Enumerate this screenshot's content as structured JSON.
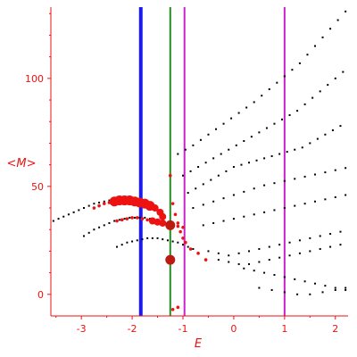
{
  "chart_data": {
    "type": "scatter",
    "title": "",
    "xlabel": "E",
    "ylabel": "<M>",
    "xlim": [
      -3.6,
      2.25
    ],
    "ylim": [
      -10,
      133
    ],
    "grid": false,
    "x_ticks": [
      -3,
      -2,
      -1,
      0,
      1,
      2
    ],
    "y_ticks": [
      0,
      50,
      100
    ],
    "colors": {
      "axis": "#ee1111",
      "black_points": "#000000",
      "red_points": "#ee1111",
      "big_markers": "#bb1a10"
    },
    "vertical_lines": [
      {
        "x": -1.83,
        "color": "#1a1aee"
      },
      {
        "x": -1.25,
        "color": "#228b22"
      },
      {
        "x": -0.97,
        "color": "#cc22cc"
      },
      {
        "x": 1.0,
        "color": "#cc22cc"
      }
    ],
    "big_markers": [
      {
        "x": -1.25,
        "y": 32
      },
      {
        "x": -1.25,
        "y": 16
      }
    ],
    "series": [
      {
        "color": "black",
        "x": [
          -3.55,
          -3.45,
          -3.35,
          -3.25,
          -3.15,
          -3.05,
          -2.95,
          -2.85,
          -2.75,
          -2.65,
          -2.55,
          -2.45,
          -2.35,
          -2.25,
          -2.15,
          -2.95,
          -2.85,
          -2.75,
          -2.65,
          -2.55,
          -2.45,
          -2.35,
          -2.25,
          -2.15,
          -2.05,
          -1.95,
          -1.85,
          -1.75,
          -1.65,
          -2.3,
          -2.2,
          -2.1,
          -2.0,
          -1.9,
          -1.8,
          -1.7,
          -1.6,
          -1.5,
          -1.4,
          -1.3,
          -1.2,
          -1.1,
          -1.0,
          -0.9,
          -0.8,
          -1.1,
          -0.95,
          -0.8,
          -0.65,
          -0.5,
          -0.35,
          -0.2,
          -0.05,
          0.1,
          0.25,
          0.4,
          0.55,
          0.7,
          0.85,
          1.0,
          1.15,
          1.3,
          1.45,
          1.6,
          1.75,
          1.9,
          2.05,
          2.2,
          -1.0,
          -0.85,
          -0.7,
          -0.55,
          -0.4,
          -0.25,
          -0.1,
          0.05,
          0.2,
          0.35,
          0.5,
          0.65,
          0.8,
          0.95,
          1.1,
          1.25,
          1.4,
          1.55,
          1.7,
          1.85,
          2.0,
          2.15,
          -0.9,
          -0.75,
          -0.6,
          -0.45,
          -0.3,
          -0.15,
          0.0,
          0.15,
          0.3,
          0.45,
          0.6,
          0.75,
          0.9,
          1.05,
          1.2,
          1.35,
          1.5,
          1.65,
          1.8,
          1.95,
          2.1,
          -0.8,
          -0.6,
          -0.4,
          -0.2,
          0.0,
          0.2,
          0.4,
          0.6,
          0.8,
          1.0,
          1.2,
          1.4,
          1.6,
          1.8,
          2.0,
          2.2,
          -0.6,
          -0.4,
          -0.2,
          0.0,
          0.2,
          0.4,
          0.6,
          0.8,
          1.0,
          1.2,
          1.4,
          1.6,
          1.8,
          2.0,
          2.2,
          -0.5,
          -0.3,
          -0.1,
          0.1,
          0.3,
          0.5,
          0.7,
          0.9,
          1.1,
          1.3,
          1.5,
          1.7,
          1.9,
          2.1,
          -0.3,
          -0.1,
          0.1,
          0.3,
          0.5,
          0.7,
          0.9,
          1.1,
          1.3,
          1.5,
          1.7,
          1.9,
          2.1,
          0.2,
          0.4,
          0.6,
          0.8,
          1.0,
          1.2,
          1.4,
          1.6,
          1.8,
          2.0,
          2.2,
          0.5,
          0.75,
          1.0,
          1.25,
          1.5,
          1.75,
          2.0,
          2.2
        ],
        "y": [
          34,
          35,
          36,
          37,
          38,
          39,
          40,
          41,
          42,
          42.5,
          43,
          43.5,
          43.5,
          43.5,
          43,
          27,
          28.5,
          30,
          31,
          32,
          33,
          34,
          34.5,
          35,
          35.5,
          35.5,
          35.5,
          35.5,
          35,
          22,
          23,
          24,
          24.5,
          25,
          25.5,
          26,
          26,
          26,
          25.5,
          25,
          24.5,
          24,
          23,
          22,
          21,
          65,
          67,
          69,
          71.5,
          74,
          76.5,
          79,
          81.5,
          84,
          86.5,
          89,
          92,
          95,
          98,
          101,
          104,
          107,
          111,
          115,
          119,
          123,
          127,
          131,
          55,
          57,
          59,
          61,
          63,
          65,
          67,
          69,
          71,
          73,
          75,
          77,
          79,
          81,
          83,
          85,
          88,
          91,
          94,
          97,
          100,
          103,
          47,
          49,
          51,
          53,
          55,
          57,
          59,
          60,
          61,
          62,
          63,
          64,
          65,
          66,
          67,
          68,
          70,
          72,
          74,
          76,
          78,
          40,
          41.5,
          43,
          44.5,
          46,
          47.5,
          49,
          50.5,
          51.5,
          52.5,
          53.5,
          54.5,
          55.5,
          56.5,
          57.5,
          58.5,
          32,
          33,
          34,
          35,
          36,
          37,
          38,
          39,
          40,
          41,
          42,
          43,
          44,
          45,
          46,
          20,
          19,
          18,
          19,
          20,
          21,
          22,
          23,
          24,
          25,
          26,
          27,
          28,
          29,
          16,
          15,
          14,
          14,
          15,
          16,
          17,
          18,
          19,
          20,
          21,
          22,
          23,
          12,
          11,
          10,
          9,
          8,
          7,
          6,
          5,
          4,
          3,
          2,
          3,
          2,
          1,
          0,
          0,
          1,
          2,
          3
        ]
      },
      {
        "color": "red",
        "x": [
          -2.75,
          -2.65,
          -2.55,
          -2.45,
          -2.35,
          -2.25,
          -2.15,
          -2.05,
          -1.95,
          -1.85,
          -1.75,
          -1.65,
          -1.55,
          -1.45,
          -1.4,
          -2.3,
          -2.2,
          -2.1,
          -2.0,
          -1.9,
          -1.8,
          -1.7,
          -1.6,
          -1.5,
          -1.4,
          -1.3,
          -1.2,
          -1.1,
          -1.0,
          -1.25,
          -1.2,
          -1.15,
          -1.1,
          -1.05,
          -1.0,
          -0.95,
          -0.85,
          -0.7,
          -0.55,
          -1.2,
          -1.1
        ],
        "y": [
          40,
          41,
          42,
          42.5,
          43,
          43.5,
          43.5,
          43.5,
          43,
          42.5,
          42,
          41,
          40,
          38,
          36,
          34,
          34.5,
          35,
          35.5,
          35.5,
          35,
          34.5,
          34,
          33.5,
          33,
          32.5,
          32,
          31.5,
          31,
          55,
          42,
          37,
          33,
          29,
          26,
          24,
          21,
          19,
          16,
          -7,
          -6
        ]
      }
    ]
  }
}
